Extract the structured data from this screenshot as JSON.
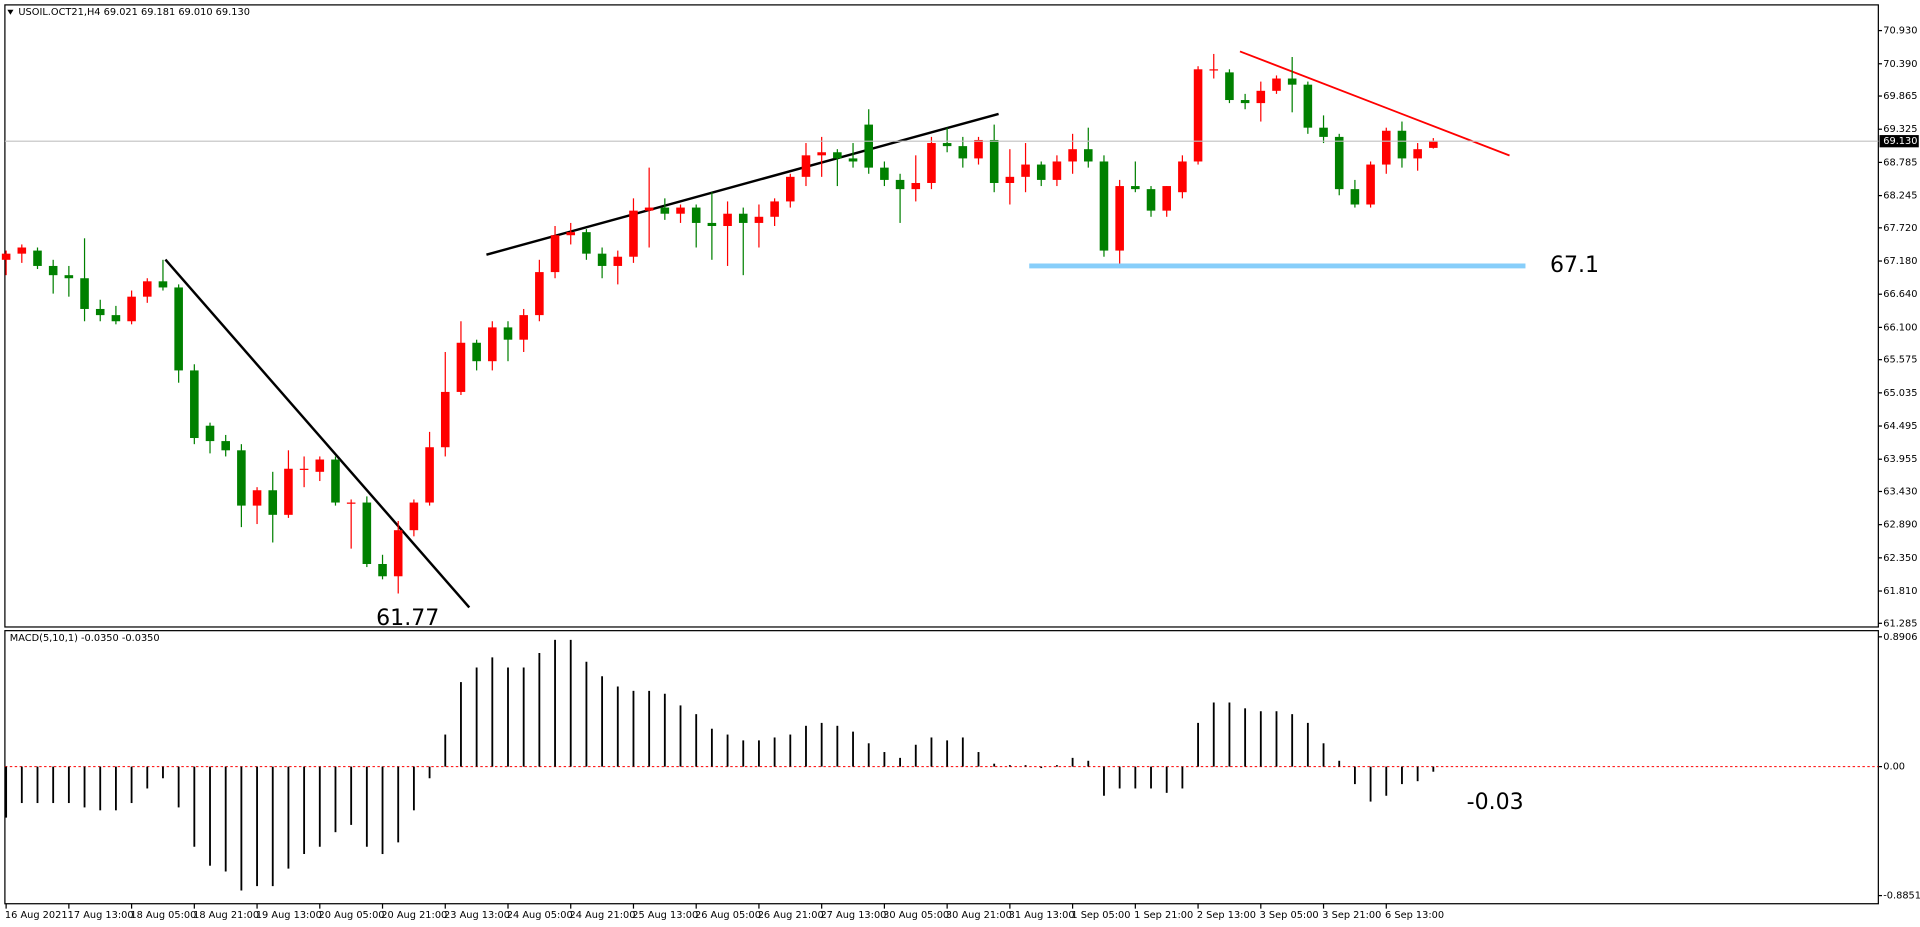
{
  "chart_data": [
    {
      "type": "candlestick",
      "title": "USOIL.OCT21,H4 69.021 69.181 69.010 69.130",
      "categories": [
        "16 Aug 2021",
        null,
        null,
        null,
        "17 Aug 13:00",
        null,
        null,
        null,
        "18 Aug 05:00",
        null,
        null,
        null,
        "18 Aug 21:00",
        null,
        null,
        null,
        "19 Aug 13:00",
        null,
        null,
        null,
        "20 Aug 05:00",
        null,
        null,
        null,
        "20 Aug 21:00",
        null,
        null,
        null,
        "23 Aug 13:00",
        null,
        null,
        null,
        "24 Aug 05:00",
        null,
        null,
        null,
        "24 Aug 21:00",
        null,
        null,
        null,
        "25 Aug 13:00",
        null,
        null,
        null,
        "26 Aug 05:00",
        null,
        null,
        null,
        "26 Aug 21:00",
        null,
        null,
        null,
        "27 Aug 13:00",
        null,
        null,
        null,
        "30 Aug 05:00",
        null,
        null,
        null,
        "30 Aug 21:00",
        null,
        null,
        null,
        "31 Aug 13:00",
        null,
        null,
        null,
        "1 Sep 05:00",
        null,
        null,
        null,
        "1 Sep 21:00",
        null,
        null,
        null,
        "2 Sep 13:00",
        null,
        null,
        null,
        "3 Sep 05:00",
        null,
        null,
        null,
        "3 Sep 21:00",
        null,
        null,
        null,
        "6 Sep 13:00",
        null,
        null,
        null
      ],
      "open": [
        67.2,
        67.3,
        67.35,
        67.1,
        66.95,
        66.9,
        66.4,
        66.3,
        66.2,
        66.6,
        66.85,
        66.75,
        65.4,
        64.5,
        64.25,
        64.1,
        63.2,
        63.45,
        63.05,
        63.8,
        63.75,
        63.95,
        63.25,
        63.25,
        62.25,
        62.05,
        62.8,
        63.25,
        64.15,
        65.05,
        65.85,
        65.55,
        66.1,
        65.9,
        66.3,
        67.0,
        67.6,
        67.65,
        67.3,
        67.1,
        67.25,
        68.0,
        68.05,
        67.95,
        68.05,
        67.8,
        67.75,
        67.95,
        67.8,
        67.9,
        68.15,
        68.55,
        68.9,
        68.95,
        68.85,
        69.4,
        68.7,
        68.5,
        68.35,
        68.45,
        69.1,
        69.05,
        68.85,
        69.15,
        68.45,
        68.55,
        68.75,
        68.5,
        68.8,
        69.0,
        68.8,
        67.35,
        68.4,
        68.35,
        68.0,
        68.3,
        68.8,
        70.3,
        70.25,
        69.8,
        69.75,
        69.95,
        70.15,
        70.05,
        69.35,
        69.2,
        68.35,
        68.1,
        68.75,
        69.3,
        68.85,
        69.021
      ],
      "high": [
        67.35,
        67.45,
        67.4,
        67.2,
        67.1,
        67.55,
        66.55,
        66.45,
        66.7,
        66.9,
        67.2,
        66.8,
        65.5,
        64.55,
        64.35,
        64.2,
        63.5,
        63.75,
        64.1,
        64.0,
        64.0,
        64.0,
        63.3,
        63.35,
        62.4,
        62.95,
        63.3,
        64.4,
        65.7,
        66.2,
        65.9,
        66.2,
        66.2,
        66.4,
        67.2,
        67.75,
        67.8,
        67.7,
        67.4,
        67.35,
        68.2,
        68.7,
        68.2,
        68.1,
        68.1,
        68.3,
        68.15,
        68.05,
        68.1,
        68.2,
        68.6,
        69.1,
        69.2,
        69.0,
        69.1,
        69.65,
        68.8,
        68.6,
        68.9,
        69.2,
        69.35,
        69.2,
        69.2,
        69.4,
        69.0,
        69.1,
        68.8,
        68.9,
        69.25,
        69.35,
        68.9,
        68.5,
        68.8,
        68.4,
        68.4,
        68.9,
        70.35,
        70.55,
        70.3,
        69.9,
        70.1,
        70.2,
        70.5,
        70.1,
        69.55,
        69.25,
        68.5,
        68.8,
        69.35,
        69.45,
        69.1,
        69.181
      ],
      "low": [
        66.95,
        67.15,
        67.05,
        66.65,
        66.6,
        66.2,
        66.2,
        66.15,
        66.15,
        66.5,
        66.7,
        65.2,
        64.2,
        64.05,
        64.0,
        62.85,
        62.9,
        62.6,
        63.0,
        63.5,
        63.6,
        63.2,
        62.5,
        62.2,
        62.0,
        61.77,
        62.7,
        63.2,
        64.0,
        65.0,
        65.4,
        65.4,
        65.55,
        65.7,
        66.2,
        66.9,
        67.45,
        67.2,
        66.9,
        66.8,
        67.15,
        67.4,
        67.85,
        67.8,
        67.4,
        67.2,
        67.1,
        66.95,
        67.4,
        67.75,
        68.05,
        68.4,
        68.55,
        68.4,
        68.7,
        68.6,
        68.4,
        67.8,
        68.15,
        68.35,
        68.95,
        68.7,
        68.75,
        68.3,
        68.1,
        68.3,
        68.4,
        68.4,
        68.6,
        68.7,
        67.25,
        67.1,
        68.3,
        67.9,
        67.9,
        68.2,
        68.75,
        70.15,
        69.75,
        69.65,
        69.45,
        69.9,
        69.6,
        69.25,
        69.1,
        68.25,
        68.05,
        68.05,
        68.6,
        68.7,
        68.65,
        69.01
      ],
      "close": [
        67.3,
        67.4,
        67.1,
        66.95,
        66.9,
        66.4,
        66.3,
        66.2,
        66.6,
        66.85,
        66.75,
        65.4,
        64.3,
        64.25,
        64.1,
        63.2,
        63.45,
        63.05,
        63.8,
        63.8,
        63.95,
        63.25,
        63.25,
        62.25,
        62.05,
        62.8,
        63.25,
        64.15,
        65.05,
        65.85,
        65.55,
        66.1,
        65.9,
        66.3,
        67.0,
        67.6,
        67.65,
        67.3,
        67.1,
        67.25,
        68.0,
        68.05,
        67.95,
        68.05,
        67.8,
        67.75,
        67.95,
        67.8,
        67.9,
        68.15,
        68.55,
        68.9,
        68.95,
        68.85,
        68.8,
        68.7,
        68.5,
        68.35,
        68.45,
        69.1,
        69.05,
        68.85,
        69.15,
        68.45,
        68.55,
        68.75,
        68.5,
        68.8,
        69.0,
        68.8,
        67.35,
        68.4,
        68.35,
        68.0,
        68.4,
        68.8,
        70.3,
        70.3,
        69.8,
        69.75,
        69.95,
        70.15,
        70.05,
        69.35,
        69.2,
        68.35,
        68.1,
        68.75,
        69.3,
        68.85,
        69.0,
        69.13
      ],
      "up_color": "#ff0000",
      "down_color": "#008000",
      "ylim": [
        61.225,
        71.348
      ],
      "yticks": [
        {
          "value": 70.93,
          "label": "70.930"
        },
        {
          "value": 70.39,
          "label": "70.390"
        },
        69.865,
        69.325,
        68.785,
        68.245,
        {
          "value": 67.72,
          "label": "67.720"
        },
        {
          "value": 67.18,
          "label": "67.180"
        },
        {
          "value": 66.64,
          "label": "66.640"
        },
        {
          "value": 66.1,
          "label": "66.100"
        },
        65.575,
        65.035,
        64.495,
        63.955,
        {
          "value": 63.43,
          "label": "63.430"
        },
        {
          "value": 62.89,
          "label": "62.890"
        },
        {
          "value": 62.35,
          "label": "62.350"
        },
        {
          "value": 61.81,
          "label": "61.810"
        },
        61.285
      ],
      "last_price": {
        "value": 69.13,
        "label": "69.130"
      },
      "level": 67.1,
      "level_color": "#87cefa",
      "low_label": 61.77
    },
    {
      "type": "bar",
      "title": "MACD(5,10,1) -0.0350 -0.0350",
      "values": [
        -0.35,
        -0.25,
        -0.25,
        -0.25,
        -0.25,
        -0.28,
        -0.3,
        -0.3,
        -0.25,
        -0.15,
        -0.08,
        -0.28,
        -0.55,
        -0.68,
        -0.72,
        -0.85,
        -0.82,
        -0.82,
        -0.7,
        -0.6,
        -0.55,
        -0.45,
        -0.4,
        -0.55,
        -0.6,
        -0.52,
        -0.3,
        -0.08,
        0.22,
        0.58,
        0.68,
        0.75,
        0.68,
        0.68,
        0.78,
        0.87,
        0.87,
        0.72,
        0.62,
        0.55,
        0.52,
        0.52,
        0.5,
        0.42,
        0.36,
        0.26,
        0.22,
        0.18,
        0.18,
        0.2,
        0.22,
        0.28,
        0.3,
        0.28,
        0.24,
        0.16,
        0.1,
        0.06,
        0.15,
        0.2,
        0.18,
        0.2,
        0.1,
        0.02,
        0.01,
        0.01,
        -0.01,
        0.01,
        0.06,
        0.04,
        -0.2,
        -0.15,
        -0.15,
        -0.15,
        -0.18,
        -0.15,
        0.3,
        0.44,
        0.44,
        0.4,
        0.38,
        0.38,
        0.36,
        0.3,
        0.16,
        0.04,
        -0.12,
        -0.24,
        -0.2,
        -0.12,
        -0.1,
        -0.035
      ],
      "color": "#000000",
      "ylim": [
        -0.941,
        0.933
      ],
      "yticks": [
        0.8906,
        {
          "value": 0,
          "label": "0.00"
        },
        -0.8851
      ],
      "value_label": -0.03
    }
  ]
}
